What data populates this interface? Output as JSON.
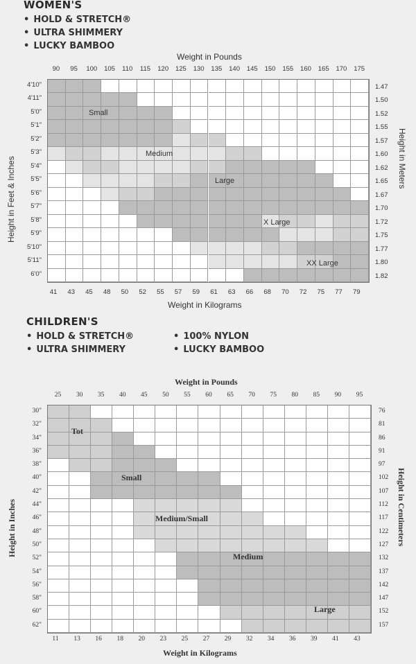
{
  "womens": {
    "heading": "WOMEN'S",
    "products": [
      "HOLD & STRETCH®",
      "ULTRA SHIMMERY",
      "LUCKY BAMBOO"
    ],
    "x_title_top": "Weight in Pounds",
    "x_title_bottom": "Weight in Kilograms",
    "y_title_left": "Height in Feet & Inches",
    "y_title_right": "Height in Meters",
    "pounds": [
      "90",
      "95",
      "100",
      "105",
      "110",
      "115",
      "120",
      "125",
      "130",
      "135",
      "140",
      "145",
      "150",
      "155",
      "160",
      "165",
      "170",
      "175"
    ],
    "kilograms": [
      "41",
      "43",
      "45",
      "48",
      "50",
      "52",
      "55",
      "57",
      "59",
      "61",
      "63",
      "66",
      "68",
      "70",
      "72",
      "75",
      "77",
      "79"
    ],
    "heights": [
      "4'10\"",
      "4'11\"",
      "5'0\"",
      "5'1\"",
      "5'2\"",
      "5'3\"",
      "5'4\"",
      "5'5\"",
      "5'6\"",
      "5'7\"",
      "5'8\"",
      "5'9\"",
      "5'10\"",
      "5'11\"",
      "6'0\""
    ],
    "meters": [
      "1.47",
      "1.50",
      "1.52",
      "1.55",
      "1.57",
      "1.60",
      "1.62",
      "1.65",
      "1.67",
      "1.70",
      "1.72",
      "1.75",
      "1.77",
      "1.80",
      "1.82"
    ],
    "zones": [
      {
        "name": "Small",
        "shade": "#bdbdbd"
      },
      {
        "name": "Medium",
        "shade": "#dcdcdc"
      },
      {
        "name": "Large",
        "shade": "#bdbdbd"
      },
      {
        "name": "X Large",
        "shade": "#dcdcdc"
      },
      {
        "name": "XX Large",
        "shade": "#bdbdbd"
      }
    ]
  },
  "childrens": {
    "heading": "CHILDREN'S",
    "products_left": [
      "HOLD & STRETCH®",
      "ULTRA SHIMMERY"
    ],
    "products_right": [
      "100% NYLON",
      "LUCKY BAMBOO"
    ],
    "x_title_top": "Weight in Pounds",
    "x_title_bottom": "Weight in Kilograms",
    "y_title_left": "Height in Inches",
    "y_title_right": "Height in Centimeters",
    "pounds": [
      "25",
      "30",
      "35",
      "40",
      "45",
      "50",
      "55",
      "60",
      "65",
      "70",
      "75",
      "80",
      "85",
      "90",
      "95"
    ],
    "kilograms": [
      "11",
      "13",
      "16",
      "18",
      "20",
      "23",
      "25",
      "27",
      "29",
      "32",
      "34",
      "36",
      "39",
      "41",
      "43"
    ],
    "heights": [
      "30\"",
      "32\"",
      "34\"",
      "36\"",
      "38\"",
      "40\"",
      "42\"",
      "44\"",
      "46\"",
      "48\"",
      "50\"",
      "52\"",
      "54\"",
      "56\"",
      "58\"",
      "60\"",
      "62\""
    ],
    "centimeters": [
      "76",
      "81",
      "86",
      "91",
      "97",
      "102",
      "107",
      "112",
      "117",
      "122",
      "127",
      "132",
      "137",
      "142",
      "147",
      "152",
      "157"
    ],
    "zones": [
      {
        "name": "Tot",
        "shade": "#cfcfcf"
      },
      {
        "name": "Small",
        "shade": "#bdbdbd"
      },
      {
        "name": "Medium/Small",
        "shade": "#d9d9d9"
      },
      {
        "name": "Medium",
        "shade": "#bdbdbd"
      },
      {
        "name": "Large",
        "shade": "#d0d0d0"
      }
    ]
  }
}
